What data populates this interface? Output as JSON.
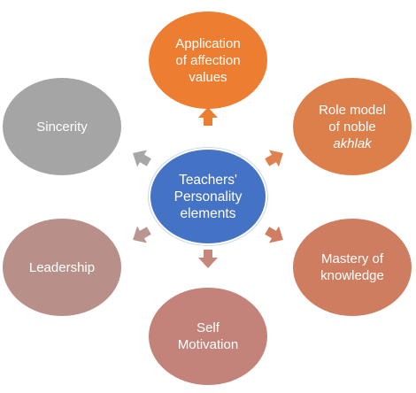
{
  "diagram": {
    "center": {
      "lines": [
        "Teachers'",
        "Personality",
        "elements"
      ],
      "color": "#4472c4"
    },
    "nodes": [
      {
        "id": "application-of-affection-values",
        "lines": [
          "Application",
          "of affection",
          "values"
        ],
        "color": "#ed7d31"
      },
      {
        "id": "role-model-of-noble-akhlak",
        "lines": [
          "Role model",
          "of noble"
        ],
        "italic_line": "akhlak",
        "color": "#dd7f4b"
      },
      {
        "id": "mastery-of-knowledge",
        "lines": [
          "Mastery of",
          "knowledge"
        ],
        "color": "#cf7d61"
      },
      {
        "id": "self-motivation",
        "lines": [
          "Self",
          "Motivation"
        ],
        "color": "#c4837a"
      },
      {
        "id": "leadership",
        "lines": [
          "Leadership"
        ],
        "color": "#b89089"
      },
      {
        "id": "sincerity",
        "lines": [
          "Sincerity"
        ],
        "color": "#a5a5a5"
      }
    ],
    "arrow_colors": [
      "#ed7d31",
      "#e0824f",
      "#d27c61",
      "#c5867c",
      "#bb958f",
      "#a7a7a7"
    ]
  }
}
